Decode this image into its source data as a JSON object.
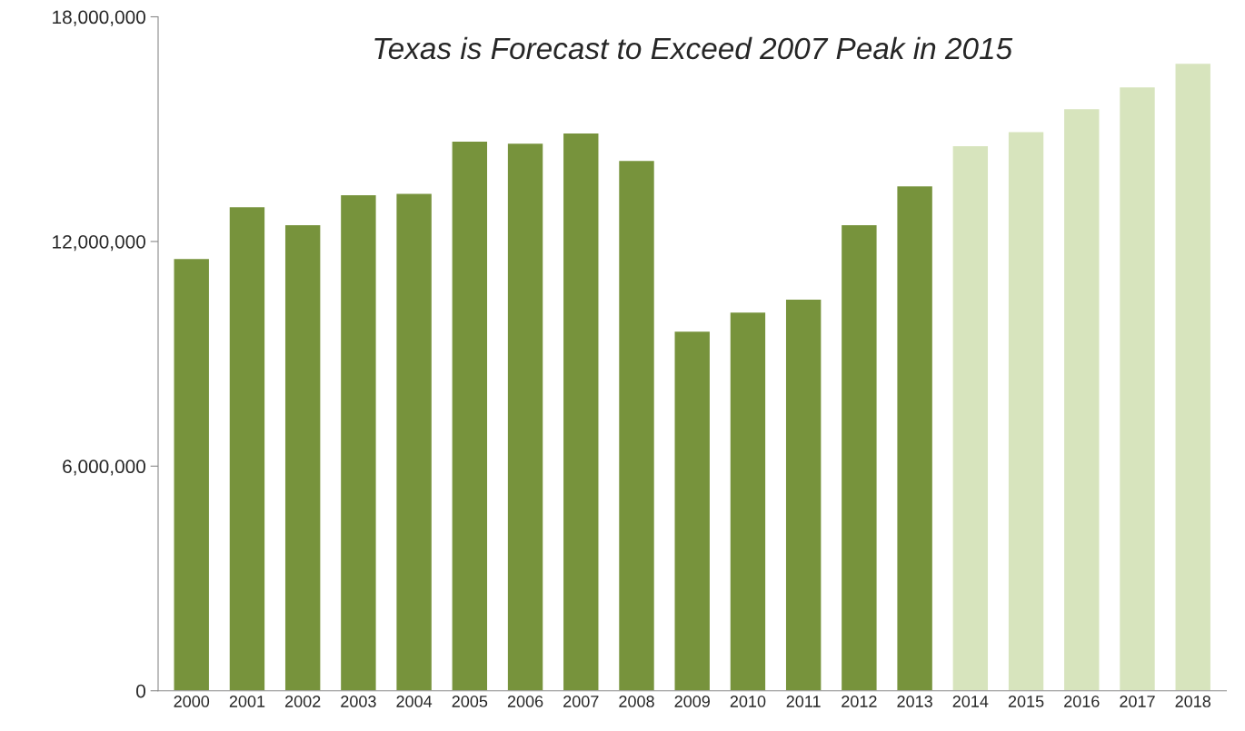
{
  "chart_data": {
    "type": "bar",
    "title": "Texas is Forecast to Exceed 2007 Peak in 2015",
    "categories": [
      "2000",
      "2001",
      "2002",
      "2003",
      "2004",
      "2005",
      "2006",
      "2007",
      "2008",
      "2009",
      "2010",
      "2011",
      "2012",
      "2013",
      "2014",
      "2015",
      "2016",
      "2017",
      "2018"
    ],
    "values": [
      11550000,
      12930000,
      12450000,
      13250000,
      13290000,
      14680000,
      14630000,
      14900000,
      14170000,
      9610000,
      10120000,
      10460000,
      12450000,
      13490000,
      14560000,
      14940000,
      15550000,
      16130000,
      16760000
    ],
    "colors": [
      "#77933c",
      "#77933c",
      "#77933c",
      "#77933c",
      "#77933c",
      "#77933c",
      "#77933c",
      "#77933c",
      "#77933c",
      "#77933c",
      "#77933c",
      "#77933c",
      "#77933c",
      "#77933c",
      "#d7e4bd",
      "#d7e4bd",
      "#d7e4bd",
      "#d7e4bd",
      "#d7e4bd"
    ],
    "ylim": [
      0,
      18000000
    ],
    "yticks": [
      0,
      {
        "value": 6000000,
        "label": "6,000,000"
      },
      {
        "value": 12000000,
        "label": "12,000,000"
      },
      {
        "value": 18000000,
        "label": "18,000,000"
      }
    ],
    "grid": false,
    "legend": false
  }
}
